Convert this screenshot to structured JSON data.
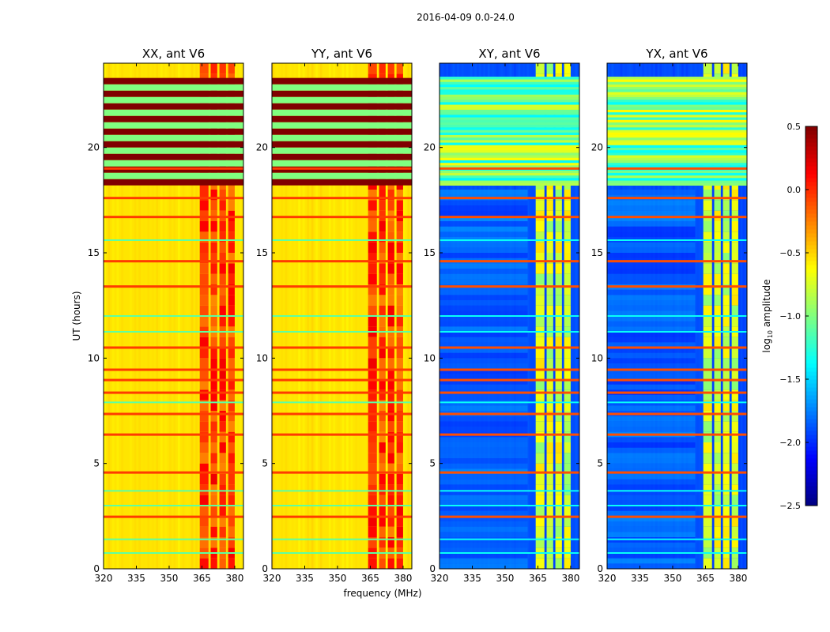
{
  "chart_data": {
    "type": "heatmap",
    "suptitle": "2016-04-09 0.0-24.0",
    "xlabel": "frequency (MHz)",
    "ylabel": "UT (hours)",
    "xlim": [
      320,
      384
    ],
    "ylim": [
      0,
      24
    ],
    "xticks": [
      320,
      335,
      350,
      365,
      380
    ],
    "yticks": [
      0,
      5,
      10,
      15,
      20
    ],
    "colormap": "jet",
    "colorbar": {
      "label": "log10 amplitude",
      "label_main": "log",
      "label_sub": "10",
      "label_rest": " amplitude",
      "range": [
        -2.5,
        0.5
      ],
      "ticks": [
        "0.5",
        "0.0",
        "−0.5",
        "−1.0",
        "−1.5",
        "−2.0",
        "−2.5"
      ],
      "tick_values": [
        0.5,
        0.0,
        -0.5,
        -1.0,
        -1.5,
        -2.0,
        -2.5
      ]
    },
    "rfi_channels_mhz": [
      [
        364,
        368
      ],
      [
        369,
        372
      ],
      [
        373,
        376
      ],
      [
        377,
        380
      ]
    ],
    "flagged_stripes_hours": [
      18.2,
      23.3
    ],
    "hot_lines_hours": [
      2.47,
      4.57,
      6.37,
      7.35,
      8.36,
      8.96,
      9.45,
      10.5,
      13.4,
      14.6,
      16.7,
      17.6,
      19.0
    ],
    "cool_lines_hours": [
      0.75,
      1.4,
      3.0,
      3.7,
      7.9,
      11.25,
      12.0,
      15.6
    ],
    "panels": [
      {
        "title": "XX, ant V6",
        "base": -0.55,
        "rfi": -0.05,
        "hot": -0.05,
        "cool": -1.1,
        "flag_mode": "stripes"
      },
      {
        "title": "YY, ant V6",
        "base": -0.55,
        "rfi": -0.05,
        "hot": -0.05,
        "cool": -1.1,
        "flag_mode": "stripes"
      },
      {
        "title": "XY, ant V6",
        "base": -1.9,
        "rfi": -0.75,
        "hot": -0.1,
        "cool": -1.35,
        "flag_mode": "noise"
      },
      {
        "title": "YX, ant V6",
        "base": -1.9,
        "rfi": -0.75,
        "hot": -0.1,
        "cool": -1.35,
        "flag_mode": "noise"
      }
    ]
  }
}
